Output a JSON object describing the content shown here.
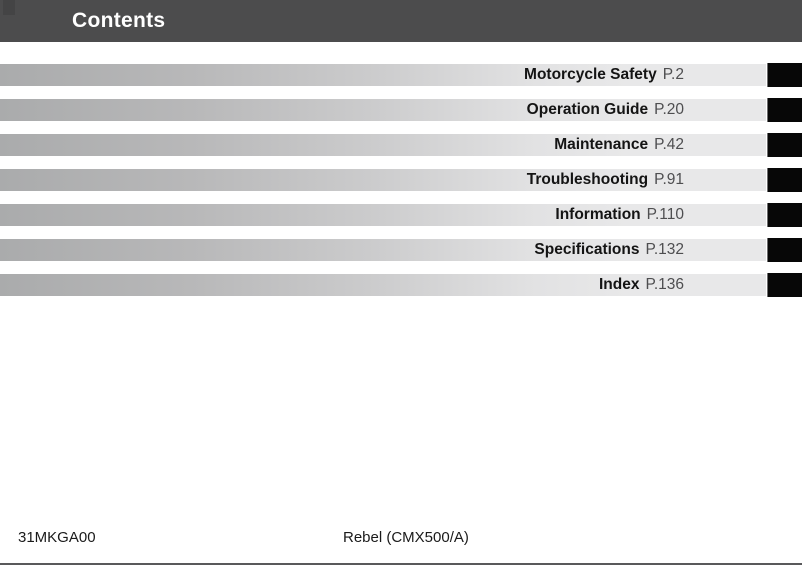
{
  "header": {
    "title": "Contents"
  },
  "toc": {
    "entries": [
      {
        "label": "Motorcycle Safety",
        "page": "P.2"
      },
      {
        "label": "Operation Guide",
        "page": "P.20"
      },
      {
        "label": "Maintenance",
        "page": "P.42"
      },
      {
        "label": "Troubleshooting",
        "page": "P.91"
      },
      {
        "label": "Information",
        "page": "P.110"
      },
      {
        "label": "Specifications",
        "page": "P.132"
      },
      {
        "label": "Index",
        "page": "P.136"
      }
    ]
  },
  "footer": {
    "code": "31MKGA00",
    "model": "Rebel (CMX500/A)"
  },
  "colors": {
    "header_bg": "#4c4c4d",
    "header_text": "#ffffff",
    "bar_gradient_start": "#aaabac",
    "bar_gradient_end": "#e8e8e9",
    "chapter_tab": "#070707",
    "chapter_label_text": "#141414",
    "page_ref_text": "#4e4e50",
    "bottom_rule": "#59595b"
  }
}
